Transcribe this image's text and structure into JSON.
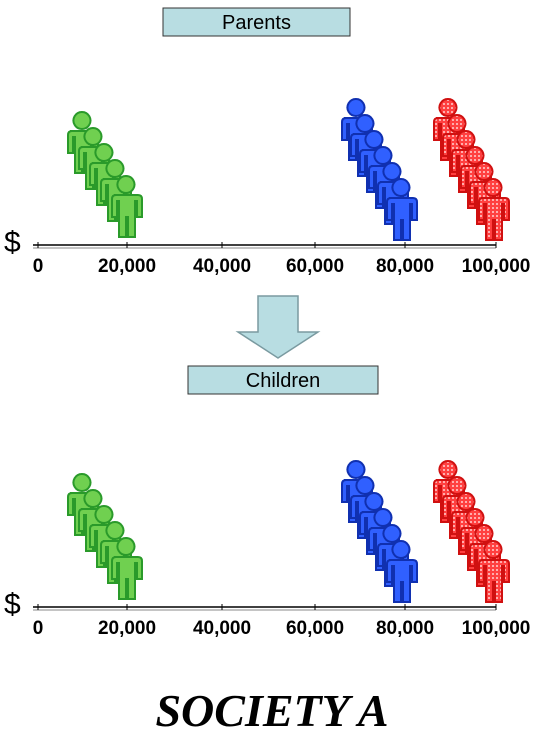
{
  "panels": [
    {
      "label": "Parents"
    },
    {
      "label": "Children"
    }
  ],
  "axis": {
    "currency": "$",
    "ticks": [
      "0",
      "20,000",
      "40,000",
      "60,000",
      "80,000",
      "100,000"
    ]
  },
  "title": "SOCIETY A"
}
